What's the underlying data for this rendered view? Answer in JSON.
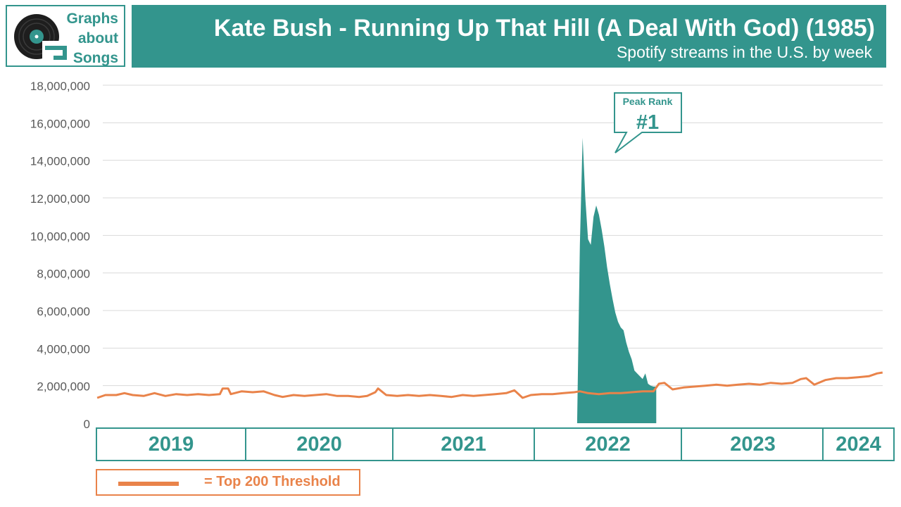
{
  "brand": {
    "logo_lines": [
      "Graphs",
      "about",
      "Songs"
    ],
    "teal": "#33958d",
    "orange": "#e9834a"
  },
  "header": {
    "title": "Kate Bush - Running Up That Hill (A Deal With God) (1985)",
    "subtitle": "Spotify streams in the U.S. by week"
  },
  "callout": {
    "label": "Peak Rank",
    "value": "#1"
  },
  "legend": {
    "text": "= Top 200 Threshold"
  },
  "years": [
    "2019",
    "2020",
    "2021",
    "2022",
    "2023",
    "2024"
  ],
  "chart_data": {
    "type": "area",
    "title": "Kate Bush - Running Up That Hill (A Deal With God) (1985)",
    "subtitle": "Spotify streams in the U.S. by week",
    "ylim": [
      0,
      18000000
    ],
    "y_ticks": [
      0,
      2000000,
      4000000,
      6000000,
      8000000,
      10000000,
      12000000,
      14000000,
      16000000,
      18000000
    ],
    "y_tick_labels": [
      "0",
      "2,000,000",
      "4,000,000",
      "6,000,000",
      "8,000,000",
      "10,000,000",
      "12,000,000",
      "14,000,000",
      "16,000,000",
      "18,000,000"
    ],
    "x_categories": [
      "2019",
      "2020",
      "2021",
      "2022",
      "2023",
      "2024"
    ],
    "grid": true,
    "legend_position": "bottom-left",
    "series": [
      {
        "name": "Top 200 Threshold",
        "type": "line",
        "color": "#e9834a",
        "points": [
          [
            "2019-01-03",
            1350000
          ],
          [
            "2019-01-24",
            1500000
          ],
          [
            "2019-02-21",
            1500000
          ],
          [
            "2019-03-14",
            1600000
          ],
          [
            "2019-04-04",
            1500000
          ],
          [
            "2019-05-02",
            1450000
          ],
          [
            "2019-05-30",
            1600000
          ],
          [
            "2019-06-27",
            1450000
          ],
          [
            "2019-07-25",
            1550000
          ],
          [
            "2019-08-22",
            1500000
          ],
          [
            "2019-09-19",
            1550000
          ],
          [
            "2019-10-17",
            1500000
          ],
          [
            "2019-11-14",
            1550000
          ],
          [
            "2019-11-21",
            1850000
          ],
          [
            "2019-12-05",
            1850000
          ],
          [
            "2019-12-12",
            1550000
          ],
          [
            "2020-01-09",
            1700000
          ],
          [
            "2020-02-06",
            1650000
          ],
          [
            "2020-03-05",
            1700000
          ],
          [
            "2020-04-02",
            1500000
          ],
          [
            "2020-04-23",
            1400000
          ],
          [
            "2020-05-21",
            1500000
          ],
          [
            "2020-06-18",
            1450000
          ],
          [
            "2020-07-16",
            1500000
          ],
          [
            "2020-08-13",
            1550000
          ],
          [
            "2020-09-10",
            1450000
          ],
          [
            "2020-10-08",
            1450000
          ],
          [
            "2020-11-05",
            1400000
          ],
          [
            "2020-11-26",
            1450000
          ],
          [
            "2020-12-17",
            1650000
          ],
          [
            "2020-12-24",
            1850000
          ],
          [
            "2021-01-14",
            1500000
          ],
          [
            "2021-02-11",
            1450000
          ],
          [
            "2021-03-11",
            1500000
          ],
          [
            "2021-04-08",
            1450000
          ],
          [
            "2021-05-06",
            1500000
          ],
          [
            "2021-06-03",
            1450000
          ],
          [
            "2021-07-01",
            1400000
          ],
          [
            "2021-07-29",
            1500000
          ],
          [
            "2021-08-26",
            1450000
          ],
          [
            "2021-09-23",
            1500000
          ],
          [
            "2021-10-21",
            1550000
          ],
          [
            "2021-11-18",
            1600000
          ],
          [
            "2021-12-09",
            1750000
          ],
          [
            "2021-12-30",
            1350000
          ],
          [
            "2022-01-20",
            1500000
          ],
          [
            "2022-02-17",
            1550000
          ],
          [
            "2022-03-17",
            1550000
          ],
          [
            "2022-04-14",
            1600000
          ],
          [
            "2022-05-12",
            1650000
          ],
          [
            "2022-05-26",
            1700000
          ],
          [
            "2022-06-16",
            1600000
          ],
          [
            "2022-07-14",
            1550000
          ],
          [
            "2022-08-11",
            1600000
          ],
          [
            "2022-09-08",
            1600000
          ],
          [
            "2022-10-06",
            1650000
          ],
          [
            "2022-11-03",
            1700000
          ],
          [
            "2022-12-01",
            1700000
          ],
          [
            "2022-12-15",
            2100000
          ],
          [
            "2022-12-29",
            2150000
          ],
          [
            "2023-01-19",
            1800000
          ],
          [
            "2023-02-16",
            1900000
          ],
          [
            "2023-03-16",
            1950000
          ],
          [
            "2023-04-13",
            2000000
          ],
          [
            "2023-05-11",
            2050000
          ],
          [
            "2023-06-08",
            2000000
          ],
          [
            "2023-07-06",
            2050000
          ],
          [
            "2023-08-03",
            2100000
          ],
          [
            "2023-08-31",
            2050000
          ],
          [
            "2023-09-28",
            2150000
          ],
          [
            "2023-10-26",
            2100000
          ],
          [
            "2023-11-23",
            2150000
          ],
          [
            "2023-12-14",
            2350000
          ],
          [
            "2023-12-28",
            2400000
          ],
          [
            "2024-01-18",
            2050000
          ],
          [
            "2024-02-15",
            2300000
          ],
          [
            "2024-03-14",
            2400000
          ],
          [
            "2024-04-11",
            2400000
          ],
          [
            "2024-05-09",
            2450000
          ],
          [
            "2024-06-06",
            2500000
          ],
          [
            "2024-06-27",
            2650000
          ],
          [
            "2024-07-11",
            2700000
          ]
        ]
      },
      {
        "name": "Kate Bush - Running Up That Hill (A Deal With God)",
        "type": "area",
        "color": "#33958d",
        "points": [
          [
            "2022-05-19",
            0
          ],
          [
            "2022-05-26",
            9500000
          ],
          [
            "2022-06-02",
            15200000
          ],
          [
            "2022-06-09",
            12000000
          ],
          [
            "2022-06-16",
            9800000
          ],
          [
            "2022-06-23",
            9500000
          ],
          [
            "2022-06-30",
            11000000
          ],
          [
            "2022-07-07",
            11600000
          ],
          [
            "2022-07-14",
            11100000
          ],
          [
            "2022-07-21",
            10300000
          ],
          [
            "2022-07-28",
            9400000
          ],
          [
            "2022-08-04",
            8300000
          ],
          [
            "2022-08-11",
            7400000
          ],
          [
            "2022-08-18",
            6600000
          ],
          [
            "2022-08-25",
            5900000
          ],
          [
            "2022-09-01",
            5400000
          ],
          [
            "2022-09-08",
            5100000
          ],
          [
            "2022-09-15",
            4950000
          ],
          [
            "2022-09-22",
            4300000
          ],
          [
            "2022-09-29",
            3800000
          ],
          [
            "2022-10-06",
            3400000
          ],
          [
            "2022-10-13",
            2800000
          ],
          [
            "2022-10-20",
            2650000
          ],
          [
            "2022-10-27",
            2500000
          ],
          [
            "2022-11-03",
            2350000
          ],
          [
            "2022-11-10",
            2650000
          ],
          [
            "2022-11-17",
            2100000
          ],
          [
            "2022-11-24",
            2000000
          ],
          [
            "2022-12-01",
            1950000
          ],
          [
            "2022-12-08",
            1950000
          ],
          [
            "2022-12-08",
            0
          ]
        ]
      }
    ]
  }
}
